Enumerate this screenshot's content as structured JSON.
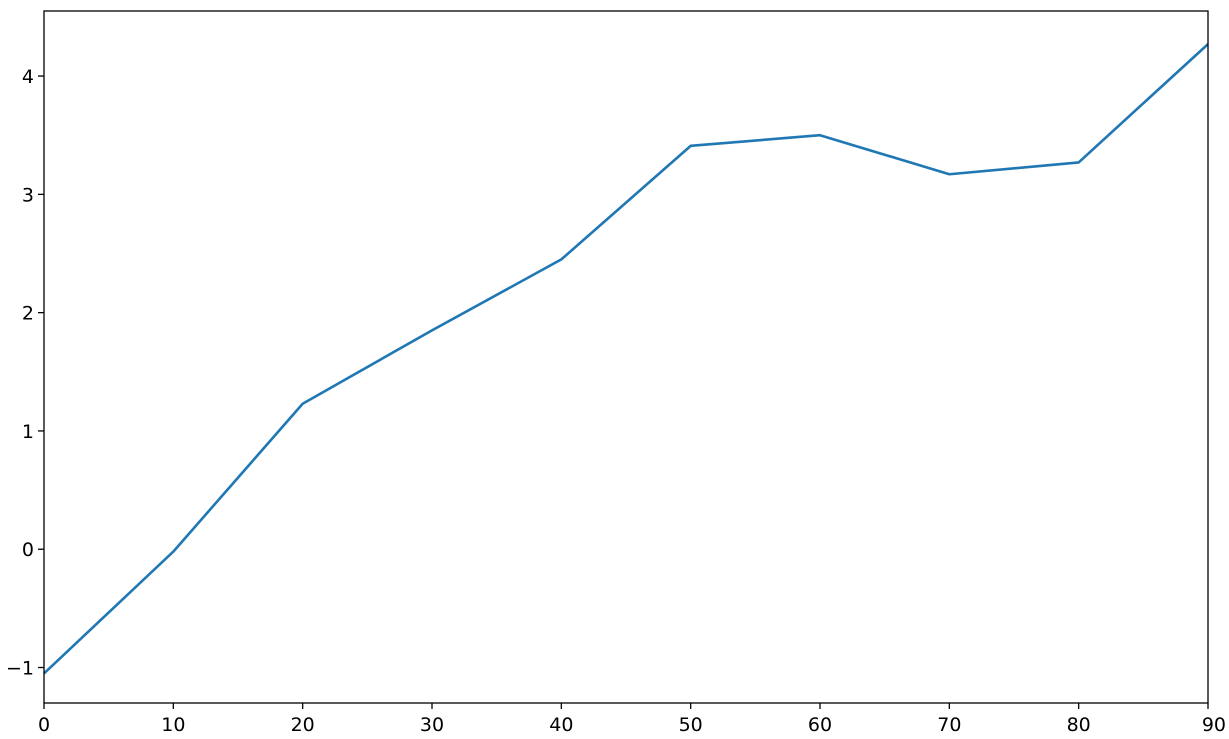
{
  "chart_data": {
    "type": "line",
    "title": "",
    "xlabel": "",
    "ylabel": "",
    "x": [
      0,
      10,
      20,
      30,
      40,
      50,
      60,
      70,
      80,
      90
    ],
    "series": [
      {
        "values": [
          -1.05,
          -0.02,
          1.23,
          1.85,
          2.45,
          3.41,
          3.5,
          3.17,
          3.27,
          4.27
        ],
        "color": "#1f77b4"
      }
    ],
    "xlim": [
      0,
      90
    ],
    "ylim": [
      -1.3,
      4.55
    ],
    "xticks": [
      0,
      10,
      20,
      30,
      40,
      50,
      60,
      70,
      80,
      90
    ],
    "xtick_labels": [
      "0",
      "10",
      "20",
      "30",
      "40",
      "50",
      "60",
      "70",
      "80",
      "90"
    ],
    "yticks": [
      -1,
      0,
      1,
      2,
      3,
      4
    ],
    "ytick_labels": [
      "−1",
      "0",
      "1",
      "2",
      "3",
      "4"
    ],
    "grid": false,
    "legend": "none"
  }
}
